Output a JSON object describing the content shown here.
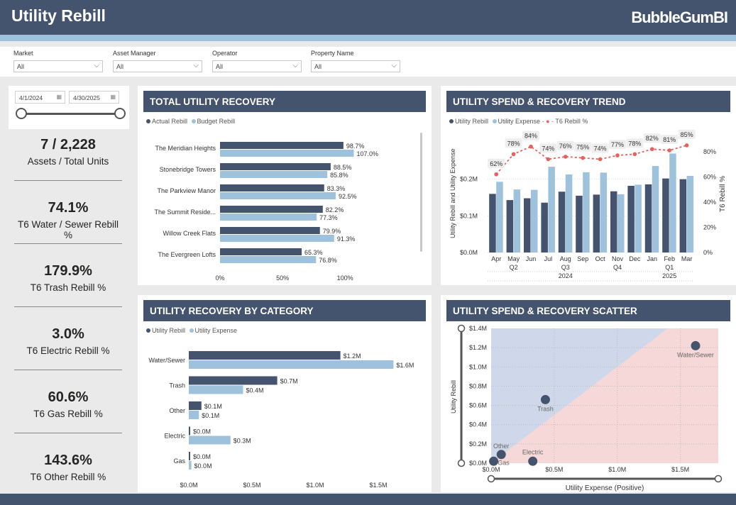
{
  "header": {
    "title": "Utility Rebill",
    "logo": "BubbleGumBI"
  },
  "filters": [
    {
      "label": "Market",
      "value": "All"
    },
    {
      "label": "Asset Manager",
      "value": "All"
    },
    {
      "label": "Operator",
      "value": "All"
    },
    {
      "label": "Property Name",
      "value": "All"
    }
  ],
  "date_range": {
    "start": "4/1/2024",
    "end": "4/30/2025"
  },
  "kpis": [
    {
      "value": "7 / 2,228",
      "label": "Assets / Total Units"
    },
    {
      "value": "74.1%",
      "label": "T6 Water / Sewer Rebill %"
    },
    {
      "value": "179.9%",
      "label": "T6 Trash Rebill %"
    },
    {
      "value": "3.0%",
      "label": "T6 Electric Rebill %"
    },
    {
      "value": "60.6%",
      "label": "T6 Gas Rebill %"
    },
    {
      "value": "143.6%",
      "label": "T6 Other Rebill %"
    }
  ],
  "colors": {
    "dark": "#44546e",
    "light": "#9ec2dc",
    "red": "#e8605a"
  },
  "chart_data": [
    {
      "type": "bar",
      "title": "TOTAL UTILITY RECOVERY",
      "orientation": "horizontal",
      "legend": [
        "Actual Rebill",
        "Budget Rebill"
      ],
      "categories": [
        "The Meridian Heights",
        "Stonebridge Towers",
        "The Parkview Manor",
        "The Summit Reside...",
        "Willow Creek Flats",
        "The Evergreen Lofts"
      ],
      "series": [
        {
          "name": "Actual Rebill",
          "values": [
            98.7,
            88.5,
            83.3,
            82.2,
            79.9,
            65.3
          ]
        },
        {
          "name": "Budget Rebill",
          "values": [
            107.0,
            85.8,
            92.5,
            77.3,
            91.3,
            76.8
          ]
        }
      ],
      "xticks": [
        "0%",
        "50%",
        "100%"
      ],
      "xlim": [
        0,
        130
      ]
    },
    {
      "type": "bar",
      "title": "UTILITY SPEND & RECOVERY TREND",
      "legend": [
        "Utility Rebill",
        "Utility Expense",
        "T6 Rebill %"
      ],
      "categories": [
        "Apr",
        "May",
        "Jun",
        "Jul",
        "Aug",
        "Sep",
        "Oct",
        "Nov",
        "Dec",
        "Jan",
        "Feb",
        "Mar"
      ],
      "quarters": [
        {
          "label": "Q2",
          "at": "May"
        },
        {
          "label": "Q3",
          "at": "Aug"
        },
        {
          "label": "Q4",
          "at": "Nov"
        },
        {
          "label": "Q1",
          "at": "Feb"
        }
      ],
      "years": [
        "2024",
        "2025"
      ],
      "series": [
        {
          "name": "Utility Rebill",
          "values": [
            0.16,
            0.143,
            0.148,
            0.136,
            0.166,
            0.155,
            0.158,
            0.167,
            0.182,
            0.186,
            0.202,
            0.2
          ]
        },
        {
          "name": "Utility Expense",
          "values": [
            0.193,
            0.172,
            0.171,
            0.234,
            0.213,
            0.219,
            0.218,
            0.159,
            0.185,
            0.236,
            0.27,
            0.209
          ]
        },
        {
          "name": "T6 Rebill %",
          "values": [
            62,
            78,
            84,
            74,
            76,
            75,
            74,
            77,
            78,
            82,
            81,
            85
          ],
          "labels": [
            "62%",
            "78%",
            "84%",
            "74%",
            "76%",
            "75%",
            "74%",
            "77%",
            "78%",
            "82%",
            "81%",
            "85%"
          ]
        }
      ],
      "yticks": [
        "$0.0M",
        "$0.1M",
        "$0.2M"
      ],
      "ylim": [
        0,
        0.3
      ],
      "y2ticks": [
        "0%",
        "20%",
        "40%",
        "60%",
        "80%"
      ],
      "y2lim": [
        0,
        90
      ],
      "ylabel": "Utility Rebill and Utility Expense",
      "y2label": "T6 Rebill %"
    },
    {
      "type": "bar",
      "title": "UTILITY RECOVERY BY CATEGORY",
      "orientation": "horizontal",
      "legend": [
        "Utility Rebill",
        "Utility Expense"
      ],
      "categories": [
        "Water/Sewer",
        "Trash",
        "Other",
        "Electric",
        "Gas"
      ],
      "series": [
        {
          "name": "Utility Rebill",
          "values": [
            1.2,
            0.7,
            0.1,
            0.0,
            0.0
          ],
          "labels": [
            "$1.2M",
            "$0.7M",
            "$0.1M",
            "$0.0M",
            "$0.0M"
          ]
        },
        {
          "name": "Utility Expense",
          "values": [
            1.62,
            0.43,
            0.08,
            0.33,
            0.02
          ],
          "labels": [
            "$1.6M",
            "$0.4M",
            "$0.1M",
            "$0.3M",
            "$0.0M"
          ]
        }
      ],
      "xticks": [
        "$0.0M",
        "$0.5M",
        "$1.0M",
        "$1.5M"
      ],
      "xlim": [
        0,
        1.9
      ]
    },
    {
      "type": "scatter",
      "title": "UTILITY SPEND & RECOVERY SCATTER",
      "xlabel": "Utility Expense (Positive)",
      "ylabel": "Utility Rebill",
      "points": [
        {
          "label": "Water/Sewer",
          "x": 1.62,
          "y": 1.22
        },
        {
          "label": "Trash",
          "x": 0.43,
          "y": 0.66
        },
        {
          "label": "Other",
          "x": 0.08,
          "y": 0.09
        },
        {
          "label": "Gas",
          "x": 0.02,
          "y": 0.02
        },
        {
          "label": "Electric",
          "x": 0.33,
          "y": 0.02
        }
      ],
      "xticks": [
        "$0.0M",
        "$0.5M",
        "$1.0M",
        "$1.5M"
      ],
      "yticks": [
        "$0.0M",
        "$0.2M",
        "$0.4M",
        "$0.6M",
        "$0.8M",
        "$1.0M",
        "$1.2M",
        "$1.4M"
      ],
      "xlim": [
        0,
        1.8
      ],
      "ylim": [
        0,
        1.4
      ]
    }
  ]
}
